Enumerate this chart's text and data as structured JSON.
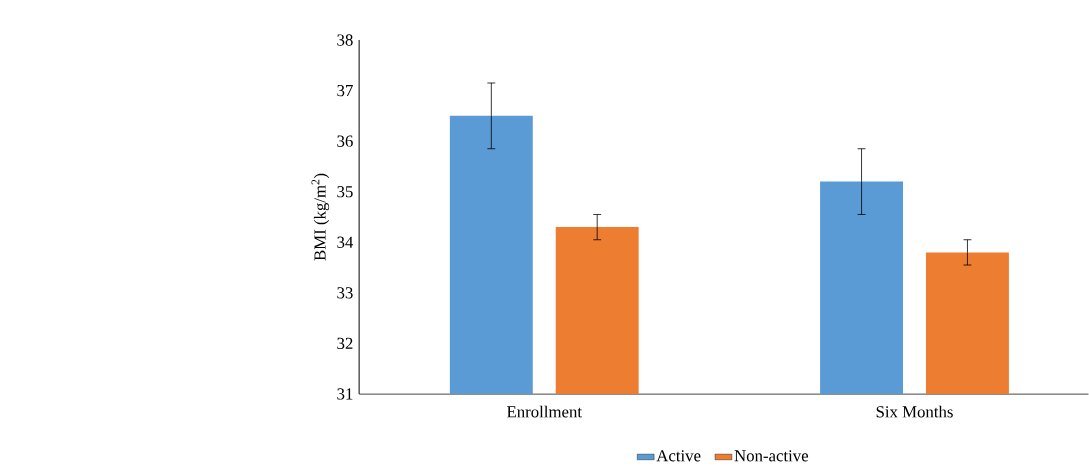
{
  "chart_data": {
    "type": "bar",
    "ylabel": "BMI (kg/m$^{2}$)",
    "categories": [
      "Enrollment",
      "Six Months"
    ],
    "series": [
      {
        "name": "Active",
        "color": "#5b9bd5",
        "values": [
          36.5,
          35.2
        ],
        "errors": [
          0.65,
          0.65
        ]
      },
      {
        "name": "Non-active",
        "color": "#ed7d31",
        "values": [
          34.3,
          33.8
        ],
        "errors": [
          0.25,
          0.25
        ]
      }
    ],
    "ylim": [
      31,
      38
    ],
    "yticks": [
      31,
      32,
      33,
      34,
      35,
      36,
      37,
      38
    ],
    "legend": "bottom"
  }
}
